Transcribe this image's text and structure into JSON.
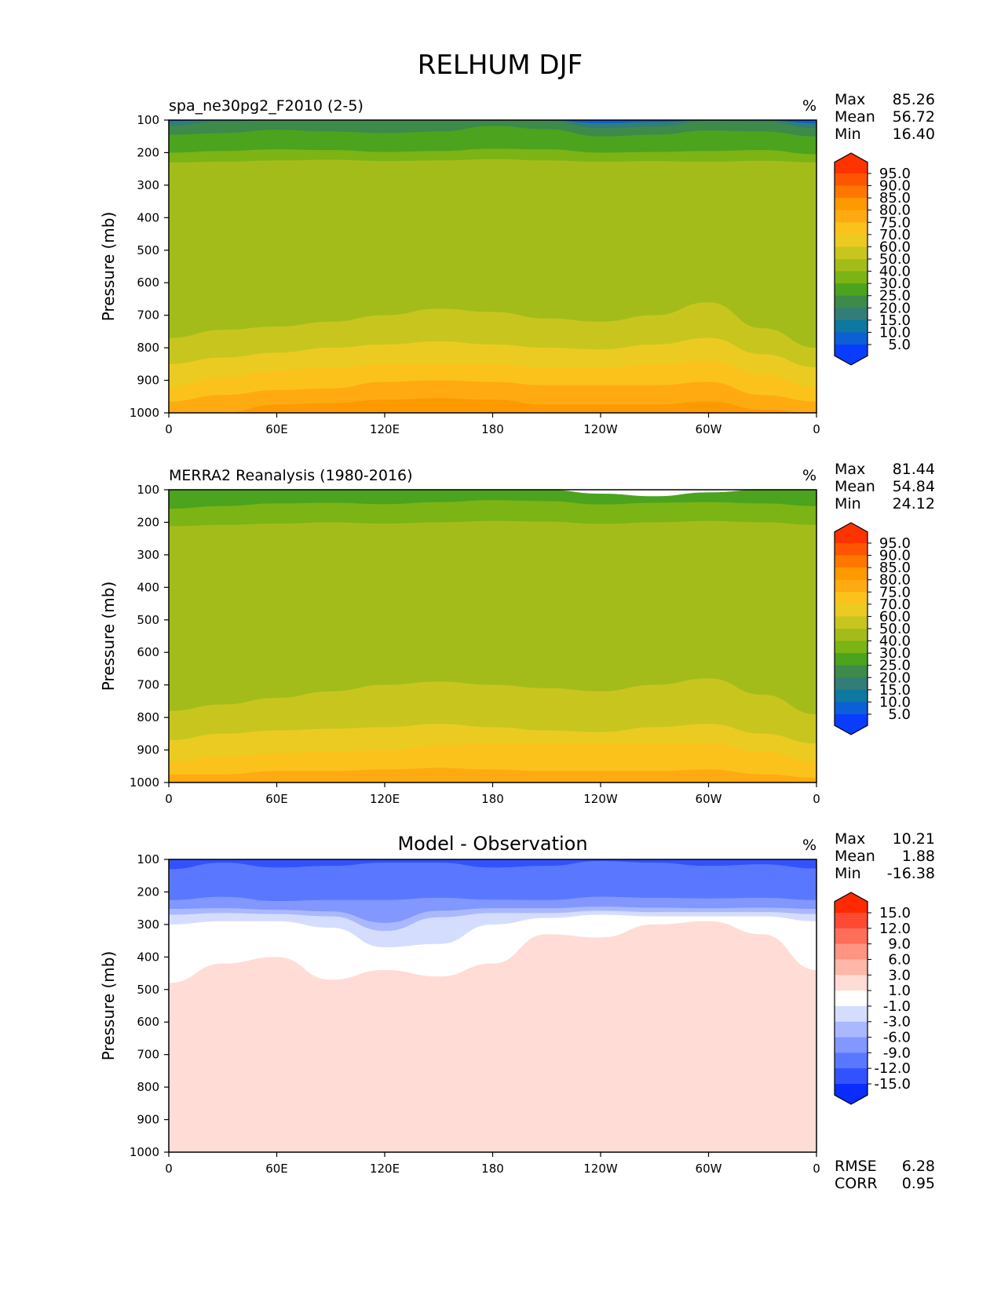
{
  "figure_title": "RELHUM DJF",
  "chart_data": [
    {
      "type": "contour",
      "title": "spa_ne30pg2_F2010 (2-5)",
      "title_position": "left",
      "units": "%",
      "ylabel": "Pressure (mb)",
      "xticks": [
        "0",
        "60E",
        "120E",
        "180",
        "120W",
        "60W",
        "0"
      ],
      "yticks": [
        "100",
        "200",
        "300",
        "400",
        "500",
        "600",
        "700",
        "800",
        "900",
        "1000"
      ],
      "ylim": [
        100,
        1000
      ],
      "stats": [
        {
          "label": "Max",
          "value": "85.26"
        },
        {
          "label": "Mean",
          "value": "56.72"
        },
        {
          "label": "Min",
          "value": "16.40"
        }
      ],
      "colorbar": {
        "levels": [
          "95.0",
          "90.0",
          "85.0",
          "80.0",
          "75.0",
          "70.0",
          "60.0",
          "50.0",
          "40.0",
          "30.0",
          "25.0",
          "20.0",
          "15.0",
          "10.0",
          "5.0"
        ],
        "colors": [
          "#ff3300",
          "#ff5500",
          "#ff7700",
          "#ff9900",
          "#ffaa11",
          "#fbc21c",
          "#ebcb22",
          "#c8c61e",
          "#a4bc1a",
          "#7cb315",
          "#4ca31d",
          "#3d8a4a",
          "#337d78",
          "#0f78a0",
          "#0d5fd6",
          "#0a3cff"
        ],
        "extend": "both"
      },
      "bands": [
        {
          "level": "5-10",
          "color": "#0d5fd6",
          "profile": [
            100,
            100,
            100,
            100,
            100,
            100,
            100,
            100,
            100,
            100,
            100,
            100,
            100
          ]
        },
        {
          "level": "10-20",
          "color": "#337d78",
          "profile": [
            103,
            100,
            100,
            100,
            100,
            100,
            100,
            100,
            110,
            106,
            100,
            100,
            110
          ]
        },
        {
          "level": "20-25",
          "color": "#3d8a4a",
          "profile": [
            118,
            104,
            100,
            100,
            100,
            100,
            100,
            102,
            125,
            120,
            102,
            104,
            125
          ]
        },
        {
          "level": "25-30",
          "color": "#4ca31d",
          "profile": [
            145,
            140,
            130,
            135,
            140,
            135,
            118,
            128,
            150,
            145,
            132,
            135,
            150
          ]
        },
        {
          "level": "30-40",
          "color": "#7cb315",
          "profile": [
            200,
            195,
            190,
            192,
            198,
            195,
            188,
            190,
            200,
            198,
            195,
            192,
            205
          ]
        },
        {
          "level": "40-50",
          "color": "#a4bc1a",
          "profile": [
            230,
            228,
            224,
            222,
            226,
            224,
            220,
            224,
            228,
            226,
            228,
            225,
            230
          ]
        },
        {
          "level": "50-60",
          "color": "#c8c61e",
          "profile": [
            770,
            745,
            735,
            720,
            700,
            680,
            690,
            710,
            720,
            700,
            660,
            740,
            800
          ]
        },
        {
          "level": "60-70",
          "color": "#ebcb22",
          "profile": [
            850,
            830,
            815,
            800,
            790,
            780,
            790,
            800,
            805,
            790,
            770,
            820,
            860
          ]
        },
        {
          "level": "70-75",
          "color": "#fbc21c",
          "profile": [
            920,
            890,
            870,
            860,
            850,
            850,
            850,
            860,
            860,
            850,
            840,
            880,
            920
          ]
        },
        {
          "level": "75-80",
          "color": "#ffaa11",
          "profile": [
            965,
            945,
            930,
            925,
            905,
            900,
            905,
            915,
            915,
            915,
            905,
            945,
            965
          ]
        },
        {
          "level": "80-85",
          "color": "#ff9900",
          "profile": [
            1000,
            1000,
            975,
            970,
            960,
            955,
            960,
            975,
            975,
            975,
            965,
            990,
            1000
          ]
        }
      ]
    },
    {
      "type": "contour",
      "title": "MERRA2 Reanalysis (1980-2016)",
      "title_position": "left",
      "units": "%",
      "ylabel": "Pressure (mb)",
      "xticks": [
        "0",
        "60E",
        "120E",
        "180",
        "120W",
        "60W",
        "0"
      ],
      "yticks": [
        "100",
        "200",
        "300",
        "400",
        "500",
        "600",
        "700",
        "800",
        "900",
        "1000"
      ],
      "ylim": [
        100,
        1000
      ],
      "stats": [
        {
          "label": "Max",
          "value": "81.44"
        },
        {
          "label": "Mean",
          "value": "54.84"
        },
        {
          "label": "Min",
          "value": "24.12"
        }
      ],
      "colorbar": {
        "levels": [
          "95.0",
          "90.0",
          "85.0",
          "80.0",
          "75.0",
          "70.0",
          "60.0",
          "50.0",
          "40.0",
          "30.0",
          "25.0",
          "20.0",
          "15.0",
          "10.0",
          "5.0"
        ],
        "colors": [
          "#ff3300",
          "#ff5500",
          "#ff7700",
          "#ff9900",
          "#ffaa11",
          "#fbc21c",
          "#ebcb22",
          "#c8c61e",
          "#a4bc1a",
          "#7cb315",
          "#4ca31d",
          "#3d8a4a",
          "#337d78",
          "#0f78a0",
          "#0d5fd6",
          "#0a3cff"
        ],
        "extend": "both"
      },
      "bands": [
        {
          "level": "25-30",
          "color": "#4ca31d",
          "profile": [
            100,
            100,
            100,
            100,
            100,
            100,
            100,
            100,
            112,
            120,
            108,
            100,
            100
          ]
        },
        {
          "level": "30-40",
          "color": "#7cb315",
          "profile": [
            158,
            150,
            142,
            140,
            144,
            138,
            132,
            135,
            145,
            140,
            138,
            142,
            150
          ]
        },
        {
          "level": "40-50",
          "color": "#a4bc1a",
          "profile": [
            212,
            208,
            204,
            200,
            204,
            200,
            196,
            198,
            205,
            200,
            196,
            200,
            208
          ]
        },
        {
          "level": "50-60",
          "color": "#c8c61e",
          "profile": [
            780,
            760,
            740,
            720,
            700,
            690,
            700,
            710,
            720,
            700,
            680,
            730,
            790
          ]
        },
        {
          "level": "60-70",
          "color": "#ebcb22",
          "profile": [
            870,
            850,
            840,
            835,
            830,
            820,
            830,
            840,
            845,
            830,
            820,
            850,
            880
          ]
        },
        {
          "level": "70-75",
          "color": "#fbc21c",
          "profile": [
            935,
            920,
            910,
            905,
            900,
            885,
            880,
            880,
            880,
            880,
            880,
            905,
            935
          ]
        },
        {
          "level": "75-80",
          "color": "#ffaa11",
          "profile": [
            975,
            975,
            965,
            965,
            960,
            955,
            960,
            965,
            965,
            965,
            960,
            975,
            985
          ]
        }
      ]
    },
    {
      "type": "contour",
      "title": "Model - Observation",
      "title_position": "center",
      "units": "%",
      "ylabel": "Pressure (mb)",
      "xticks": [
        "0",
        "60E",
        "120E",
        "180",
        "120W",
        "60W",
        "0"
      ],
      "yticks": [
        "100",
        "200",
        "300",
        "400",
        "500",
        "600",
        "700",
        "800",
        "900",
        "1000"
      ],
      "ylim": [
        100,
        1000
      ],
      "stats": [
        {
          "label": "Max",
          "value": "10.21"
        },
        {
          "label": "Mean",
          "value": "1.88"
        },
        {
          "label": "Min",
          "value": "-16.38"
        }
      ],
      "extra_stats": [
        {
          "label": "RMSE",
          "value": "6.28"
        },
        {
          "label": "CORR",
          "value": "0.95"
        }
      ],
      "colorbar": {
        "levels": [
          "15.0",
          "12.0",
          "9.0",
          "6.0",
          "3.0",
          "1.0",
          "-1.0",
          "-3.0",
          "-6.0",
          "-9.0",
          "-12.0",
          "-15.0"
        ],
        "colors": [
          "#ff2a00",
          "#ff4a33",
          "#ff6e5a",
          "#ff9482",
          "#ffb7aa",
          "#ffdcd5",
          "#ffffff",
          "#d5ddff",
          "#aab8ff",
          "#8297ff",
          "#5a78ff",
          "#3352ff",
          "#0a2cff"
        ],
        "extend": "both"
      },
      "bands": [
        {
          "level": "-15--12",
          "color": "#3352ff",
          "profile": [
            100,
            100,
            100,
            100,
            100,
            100,
            100,
            100,
            100,
            100,
            100,
            100,
            100
          ]
        },
        {
          "level": "-12--9",
          "color": "#5a78ff",
          "profile": [
            130,
            110,
            125,
            120,
            110,
            110,
            125,
            120,
            105,
            110,
            120,
            115,
            128
          ]
        },
        {
          "level": "-9--6",
          "color": "#8297ff",
          "profile": [
            225,
            215,
            228,
            225,
            225,
            218,
            224,
            225,
            215,
            218,
            220,
            218,
            225
          ]
        },
        {
          "level": "-6--3",
          "color": "#aab8ff",
          "profile": [
            252,
            250,
            255,
            260,
            295,
            258,
            250,
            250,
            245,
            248,
            250,
            248,
            252
          ]
        },
        {
          "level": "-3--1",
          "color": "#d5ddff",
          "profile": [
            270,
            265,
            268,
            275,
            320,
            278,
            265,
            265,
            258,
            262,
            262,
            262,
            268
          ]
        },
        {
          "level": "-1-1",
          "color": "#ffffff",
          "profile": [
            300,
            290,
            290,
            310,
            370,
            360,
            300,
            280,
            270,
            275,
            275,
            275,
            290
          ]
        },
        {
          "level": "1-3",
          "color": "#ffdcd5",
          "profile": [
            480,
            420,
            400,
            470,
            440,
            460,
            420,
            330,
            340,
            300,
            290,
            330,
            440
          ]
        },
        {
          "level": "3-6",
          "color": "#ffb7aa",
          "profile": [
            1000,
            1000,
            1000,
            1000,
            1000,
            1000,
            1000,
            1000,
            1000,
            1000,
            1000,
            1000,
            1000
          ]
        }
      ]
    }
  ]
}
